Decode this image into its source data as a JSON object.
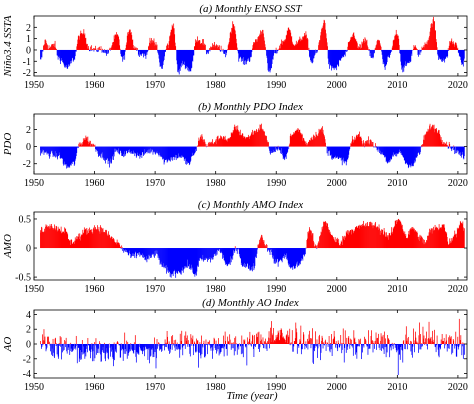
{
  "figure": {
    "xlabel": "Time (year)",
    "x_ticks": [
      "1950",
      "1960",
      "1970",
      "1980",
      "1990",
      "2000",
      "2010",
      "2020"
    ],
    "colors": {
      "positive": "#ff0000",
      "negative": "#0000ff",
      "axis": "#000000"
    }
  },
  "chart_data": [
    {
      "type": "bar",
      "title": "(a) Monthly ENSO SST",
      "ylabel": "Niño3.4 SSTA",
      "xlim": [
        1950,
        2021.5
      ],
      "ylim": [
        -2.3,
        3.0
      ],
      "y_ticks": [
        "2",
        "1",
        "0",
        "-1",
        "-2"
      ],
      "y_tick_values": [
        2,
        1,
        0,
        -1,
        -2
      ],
      "x_range": [
        1951.0,
        2021.0
      ],
      "anchors": [
        [
          1951,
          -1.0
        ],
        [
          1951.8,
          0.8
        ],
        [
          1952.5,
          0.2
        ],
        [
          1953.3,
          0.5
        ],
        [
          1954,
          -0.7
        ],
        [
          1955.5,
          -1.6
        ],
        [
          1956.5,
          -0.8
        ],
        [
          1957.5,
          1.3
        ],
        [
          1958.2,
          1.5
        ],
        [
          1959,
          0.2
        ],
        [
          1960,
          0.0
        ],
        [
          1961,
          0.1
        ],
        [
          1962,
          -0.3
        ],
        [
          1963.7,
          1.3
        ],
        [
          1964.6,
          -0.9
        ],
        [
          1965.8,
          1.9
        ],
        [
          1966.5,
          0.3
        ],
        [
          1967.5,
          -0.3
        ],
        [
          1968.5,
          -0.5
        ],
        [
          1969.2,
          1.0
        ],
        [
          1970,
          0.5
        ],
        [
          1971,
          -1.6
        ],
        [
          1972,
          0.4
        ],
        [
          1972.9,
          2.3
        ],
        [
          1973.8,
          -2.0
        ],
        [
          1974.5,
          -1.2
        ],
        [
          1975.8,
          -1.8
        ],
        [
          1976.8,
          1.0
        ],
        [
          1977.8,
          0.7
        ],
        [
          1978.5,
          -0.2
        ],
        [
          1979.5,
          0.4
        ],
        [
          1980.5,
          0.2
        ],
        [
          1981.5,
          -0.4
        ],
        [
          1982.9,
          2.3
        ],
        [
          1983.9,
          -0.8
        ],
        [
          1984.8,
          -1.1
        ],
        [
          1985.5,
          -0.8
        ],
        [
          1986.5,
          0.8
        ],
        [
          1987.7,
          1.7
        ],
        [
          1988.8,
          -2.0
        ],
        [
          1989.8,
          -0.2
        ],
        [
          1991.2,
          0.8
        ],
        [
          1992,
          1.8
        ],
        [
          1993,
          0.5
        ],
        [
          1994.8,
          1.3
        ],
        [
          1995.8,
          -1.1
        ],
        [
          1996.5,
          -0.3
        ],
        [
          1997.9,
          2.5
        ],
        [
          1998.8,
          -1.6
        ],
        [
          1999.8,
          -1.6
        ],
        [
          2001,
          -0.6
        ],
        [
          2002.8,
          1.4
        ],
        [
          2003.5,
          0.2
        ],
        [
          2004.7,
          0.8
        ],
        [
          2005.8,
          -0.8
        ],
        [
          2006.8,
          1.0
        ],
        [
          2007.9,
          -1.6
        ],
        [
          2008.5,
          -0.7
        ],
        [
          2009.9,
          1.6
        ],
        [
          2010.8,
          -1.7
        ],
        [
          2011.9,
          -1.1
        ],
        [
          2012.7,
          0.3
        ],
        [
          2013.5,
          -0.3
        ],
        [
          2014.8,
          0.7
        ],
        [
          2015.9,
          2.6
        ],
        [
          2016.8,
          -0.7
        ],
        [
          2017.9,
          -0.9
        ],
        [
          2018.8,
          0.8
        ],
        [
          2019.5,
          0.5
        ],
        [
          2020.8,
          -1.3
        ],
        [
          2021,
          -0.9
        ]
      ]
    },
    {
      "type": "bar",
      "title": "(b) Monthly PDO Index",
      "ylabel": "PDO",
      "xlim": [
        1950,
        2021.5
      ],
      "ylim": [
        -3.2,
        3.8
      ],
      "y_ticks": [
        "2",
        "0",
        "-2"
      ],
      "y_tick_values": [
        2,
        0,
        -2
      ],
      "x_range": [
        1951.0,
        2021.0
      ],
      "anchors": [
        [
          1951,
          -0.6
        ],
        [
          1952.5,
          -0.9
        ],
        [
          1954,
          -1.1
        ],
        [
          1955.5,
          -2.4
        ],
        [
          1956.5,
          -2.0
        ],
        [
          1957.5,
          0.3
        ],
        [
          1958.5,
          1.0
        ],
        [
          1959.5,
          0.3
        ],
        [
          1961,
          -1.0
        ],
        [
          1962.5,
          -1.9
        ],
        [
          1963.5,
          -0.5
        ],
        [
          1964.5,
          -0.9
        ],
        [
          1966,
          -0.6
        ],
        [
          1967.5,
          -1.1
        ],
        [
          1969,
          -0.5
        ],
        [
          1970.5,
          -0.7
        ],
        [
          1971.5,
          -1.7
        ],
        [
          1972.5,
          -1.4
        ],
        [
          1974,
          -1.1
        ],
        [
          1975.5,
          -2.0
        ],
        [
          1976.5,
          -0.7
        ],
        [
          1977.5,
          1.2
        ],
        [
          1978.5,
          0.2
        ],
        [
          1979.5,
          0.5
        ],
        [
          1981,
          1.2
        ],
        [
          1982,
          0.7
        ],
        [
          1983.3,
          2.3
        ],
        [
          1984,
          1.6
        ],
        [
          1985,
          1.0
        ],
        [
          1986.5,
          1.8
        ],
        [
          1987.5,
          2.3
        ],
        [
          1988.5,
          0.8
        ],
        [
          1989,
          -0.8
        ],
        [
          1990,
          -0.3
        ],
        [
          1991.5,
          -1.2
        ],
        [
          1992.5,
          1.3
        ],
        [
          1993.5,
          2.0
        ],
        [
          1995,
          0.4
        ],
        [
          1996,
          1.2
        ],
        [
          1997.5,
          2.0
        ],
        [
          1998.5,
          -0.6
        ],
        [
          1999.5,
          -1.3
        ],
        [
          2000.5,
          -1.5
        ],
        [
          2001.5,
          -1.9
        ],
        [
          2002.5,
          0.6
        ],
        [
          2003.5,
          1.4
        ],
        [
          2004.5,
          0.4
        ],
        [
          2005.5,
          0.8
        ],
        [
          2006.5,
          -0.2
        ],
        [
          2007.5,
          -0.8
        ],
        [
          2008.5,
          -1.9
        ],
        [
          2009.5,
          -1.0
        ],
        [
          2010.5,
          -0.7
        ],
        [
          2011.5,
          -2.0
        ],
        [
          2012.5,
          -2.2
        ],
        [
          2013.5,
          -0.8
        ],
        [
          2014.8,
          1.6
        ],
        [
          2015.5,
          2.4
        ],
        [
          2016.5,
          2.0
        ],
        [
          2017.5,
          0.7
        ],
        [
          2018.5,
          0.1
        ],
        [
          2019.5,
          -0.4
        ],
        [
          2020.5,
          -1.0
        ],
        [
          2021,
          -1.3
        ]
      ]
    },
    {
      "type": "bar",
      "title": "(c) Monthly AMO Index",
      "ylabel": "AMO",
      "xlim": [
        1950,
        2021.5
      ],
      "ylim": [
        -0.55,
        0.62
      ],
      "y_ticks": [
        "0.5",
        "0",
        "-0.5"
      ],
      "y_tick_values": [
        0.5,
        0,
        -0.5
      ],
      "x_range": [
        1951.0,
        2021.0
      ],
      "anchors": [
        [
          1951,
          0.3
        ],
        [
          1952.5,
          0.4
        ],
        [
          1953.5,
          0.35
        ],
        [
          1955,
          0.3
        ],
        [
          1956,
          0.1
        ],
        [
          1957.5,
          0.2
        ],
        [
          1958.5,
          0.3
        ],
        [
          1960.5,
          0.35
        ],
        [
          1961.5,
          0.3
        ],
        [
          1962.5,
          0.2
        ],
        [
          1963.5,
          0.1
        ],
        [
          1965,
          -0.05
        ],
        [
          1966,
          -0.15
        ],
        [
          1967.5,
          -0.1
        ],
        [
          1968.5,
          -0.2
        ],
        [
          1970,
          -0.1
        ],
        [
          1971.5,
          -0.35
        ],
        [
          1972.5,
          -0.45
        ],
        [
          1974,
          -0.4
        ],
        [
          1975.5,
          -0.3
        ],
        [
          1976.5,
          -0.45
        ],
        [
          1977.5,
          -0.2
        ],
        [
          1979,
          -0.2
        ],
        [
          1980.5,
          -0.05
        ],
        [
          1982,
          -0.3
        ],
        [
          1983.5,
          0.0
        ],
        [
          1984.5,
          -0.3
        ],
        [
          1986,
          -0.35
        ],
        [
          1987.5,
          0.2
        ],
        [
          1988.5,
          0.0
        ],
        [
          1990,
          -0.25
        ],
        [
          1991.5,
          -0.15
        ],
        [
          1992.5,
          -0.35
        ],
        [
          1993.5,
          -0.3
        ],
        [
          1994.5,
          -0.15
        ],
        [
          1995.5,
          0.35
        ],
        [
          1996.5,
          0.0
        ],
        [
          1998,
          0.45
        ],
        [
          1999.5,
          0.15
        ],
        [
          2000.5,
          0.1
        ],
        [
          2002,
          0.3
        ],
        [
          2003.5,
          0.35
        ],
        [
          2004.5,
          0.4
        ],
        [
          2006,
          0.4
        ],
        [
          2007.5,
          0.3
        ],
        [
          2008.5,
          0.2
        ],
        [
          2010.2,
          0.5
        ],
        [
          2011.5,
          0.2
        ],
        [
          2012.5,
          0.35
        ],
        [
          2013.5,
          0.2
        ],
        [
          2014.5,
          0.1
        ],
        [
          2015.5,
          0.3
        ],
        [
          2016.5,
          0.35
        ],
        [
          2017.5,
          0.4
        ],
        [
          2018.5,
          0.1
        ],
        [
          2019.5,
          0.25
        ],
        [
          2020.5,
          0.45
        ],
        [
          2021,
          0.35
        ]
      ]
    },
    {
      "type": "bar",
      "title": "(d) Monthly AO Index",
      "ylabel": "AO",
      "xlim": [
        1950,
        2021.5
      ],
      "ylim": [
        -4.6,
        4.6
      ],
      "y_ticks": [
        "4",
        "2",
        "0",
        "-2",
        "-4"
      ],
      "y_tick_values": [
        4,
        2,
        0,
        -2,
        -4
      ],
      "x_range": [
        1951.0,
        2021.0
      ],
      "anchors": [
        [
          1951,
          0.3
        ],
        [
          1955,
          -0.6
        ],
        [
          1958,
          -0.9
        ],
        [
          1960,
          -1.1
        ],
        [
          1963,
          -0.6
        ],
        [
          1966,
          -0.8
        ],
        [
          1969,
          -1.1
        ],
        [
          1972,
          0.0
        ],
        [
          1976,
          0.1
        ],
        [
          1978,
          -0.5
        ],
        [
          1980,
          -0.3
        ],
        [
          1985,
          -0.1
        ],
        [
          1988,
          0.4
        ],
        [
          1989.5,
          1.1
        ],
        [
          1992,
          0.7
        ],
        [
          1995,
          0.2
        ],
        [
          1998,
          -0.2
        ],
        [
          2000,
          0.3
        ],
        [
          2003,
          -0.3
        ],
        [
          2006,
          0.0
        ],
        [
          2008,
          0.2
        ],
        [
          2010,
          -0.9
        ],
        [
          2012,
          0.1
        ],
        [
          2015,
          0.5
        ],
        [
          2017,
          0.1
        ],
        [
          2019,
          0.0
        ],
        [
          2021,
          -0.4
        ]
      ],
      "noise": 1.25,
      "extremes": [
        [
          2010.1,
          -4.2
        ],
        [
          2020.2,
          3.4
        ],
        [
          1989.2,
          3.1
        ],
        [
          1977.1,
          -3.2
        ],
        [
          1963.1,
          -3.0
        ],
        [
          1970.1,
          -3.3
        ],
        [
          1985.1,
          -2.9
        ],
        [
          1993.2,
          2.9
        ],
        [
          2015.2,
          3.0
        ],
        [
          1996.1,
          -2.7
        ],
        [
          1957.1,
          -2.6
        ],
        [
          2001.2,
          -2.5
        ]
      ]
    }
  ]
}
